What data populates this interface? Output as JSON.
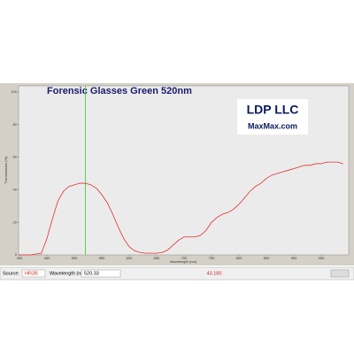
{
  "chart_data": {
    "type": "line",
    "title": "Forensic Glasses Green 520nm",
    "logo": "LDP LLC",
    "logo_url": "MaxMax.com",
    "xlabel": "Wavelength (nm)",
    "ylabel": "Transmission (%)",
    "xlim": [
      400,
      1000
    ],
    "xticks": [
      400,
      450,
      500,
      550,
      600,
      650,
      700,
      750,
      800,
      850,
      900,
      950
    ],
    "ylim": [
      0,
      100
    ],
    "yticks": [
      0,
      20,
      40,
      60,
      80,
      100
    ],
    "cursor_color": "#33cc33",
    "series": [
      {
        "name": "HR2B",
        "color": "#e03030",
        "x": [
          400,
          420,
          440,
          450,
          460,
          470,
          480,
          490,
          500,
          510,
          520,
          530,
          540,
          550,
          560,
          570,
          580,
          590,
          600,
          610,
          620,
          630,
          640,
          650,
          660,
          670,
          680,
          690,
          700,
          710,
          720,
          730,
          740,
          750,
          760,
          770,
          780,
          790,
          800,
          810,
          820,
          830,
          840,
          850,
          860,
          870,
          880,
          890,
          900,
          910,
          920,
          930,
          940,
          950,
          960,
          970,
          980,
          990
        ],
        "values": [
          0,
          0,
          1,
          10,
          22,
          33,
          39,
          42,
          43,
          44,
          44,
          43,
          41,
          37,
          32,
          25,
          17,
          10,
          5,
          2.5,
          1.5,
          1,
          1,
          1,
          1.5,
          3,
          6,
          9,
          11,
          11,
          11,
          12,
          15,
          20,
          23,
          25,
          26,
          28,
          31,
          35,
          39,
          42,
          44,
          47,
          49,
          50,
          51,
          52,
          53,
          54,
          55,
          55,
          56,
          56,
          57,
          57,
          57,
          56
        ]
      }
    ]
  },
  "toolbar": {
    "source_label": "Source:",
    "source_value": "HR2B",
    "wavelength_label": "Wavelength (nm):",
    "wavelength_value": 520.33,
    "reading": "43.180"
  }
}
